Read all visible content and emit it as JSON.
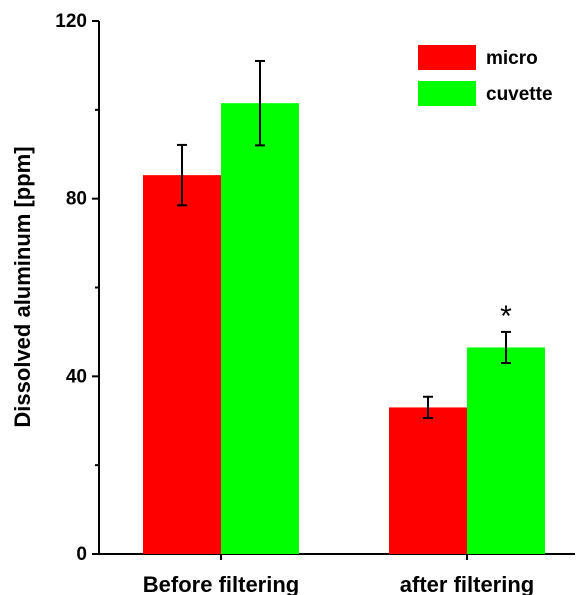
{
  "chart_data": {
    "type": "bar",
    "categories": [
      "Before filtering",
      "after filtering"
    ],
    "series": [
      {
        "name": "micro",
        "color": "#ff0000",
        "values": [
          85.3,
          33.0
        ],
        "errors": [
          6.8,
          2.4
        ]
      },
      {
        "name": "cuvette",
        "color": "#00ff00",
        "values": [
          101.5,
          46.5
        ],
        "errors": [
          9.5,
          3.5
        ]
      }
    ],
    "xlabel": "",
    "ylabel": "Dissolved aluminum [ppm]",
    "ylim": [
      0,
      120
    ],
    "yticks": [
      "0",
      "40",
      "80",
      "120"
    ],
    "grid": false,
    "legend_position": "top-right",
    "annotations": [
      {
        "text": "*",
        "category": "after filtering",
        "series": "cuvette"
      }
    ]
  }
}
